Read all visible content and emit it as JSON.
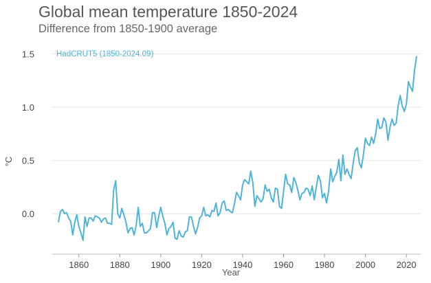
{
  "title": "Global mean temperature 1850-2024",
  "subtitle": "Difference from 1850-1900 average",
  "chart_data": {
    "type": "line",
    "title": "Global mean temperature 1850-2024",
    "subtitle": "Difference from 1850-1900 average",
    "xlabel": "Year",
    "ylabel": "°C",
    "xlim": [
      1847,
      2027
    ],
    "ylim": [
      -0.38,
      1.62
    ],
    "xticks": [
      1860,
      1880,
      1900,
      1920,
      1940,
      1960,
      1980,
      2000,
      2020
    ],
    "yticks": [
      0.0,
      0.5,
      1.0,
      1.5
    ],
    "ytick_labels": [
      "0.0",
      "0.5",
      "1.0",
      "1.5"
    ],
    "grid": "horizontal",
    "legend_position": "top-left",
    "series": [
      {
        "name": "HadCRUT5 (1850-2024.09)",
        "color": "#4fb3d9",
        "x_start": 1850,
        "values": [
          -0.08,
          0.02,
          0.04,
          0.0,
          0.01,
          -0.04,
          -0.07,
          -0.2,
          -0.08,
          -0.01,
          -0.12,
          -0.18,
          -0.25,
          -0.03,
          -0.12,
          -0.04,
          -0.04,
          -0.07,
          -0.02,
          -0.03,
          -0.04,
          -0.08,
          -0.05,
          -0.04,
          -0.09,
          -0.09,
          -0.1,
          0.22,
          0.31,
          0.0,
          -0.04,
          0.05,
          -0.01,
          -0.08,
          -0.18,
          -0.14,
          -0.13,
          -0.2,
          -0.11,
          0.06,
          -0.12,
          -0.09,
          -0.18,
          -0.18,
          -0.16,
          -0.14,
          0.01,
          0.01,
          -0.13,
          -0.03,
          0.06,
          -0.02,
          -0.09,
          -0.2,
          -0.14,
          -0.12,
          -0.08,
          -0.23,
          -0.24,
          -0.16,
          -0.21,
          -0.22,
          -0.17,
          -0.16,
          -0.03,
          -0.03,
          -0.12,
          -0.19,
          -0.13,
          -0.04,
          -0.02,
          0.06,
          -0.02,
          -0.01,
          -0.03,
          0.03,
          0.02,
          0.1,
          -0.02,
          0.01,
          0.1,
          0.12,
          0.03,
          0.04,
          0.02,
          0.01,
          0.09,
          0.2,
          0.17,
          0.13,
          0.27,
          0.32,
          0.3,
          0.28,
          0.4,
          0.29,
          0.07,
          0.17,
          0.14,
          0.11,
          0.14,
          0.27,
          0.21,
          0.23,
          0.15,
          0.11,
          0.24,
          0.23,
          0.07,
          0.05,
          0.21,
          0.37,
          0.28,
          0.27,
          0.2,
          0.34,
          0.29,
          0.22,
          0.13,
          0.19,
          0.2,
          0.24,
          0.23,
          0.17,
          0.26,
          0.13,
          0.25,
          0.36,
          0.31,
          0.15,
          0.19,
          0.1,
          0.21,
          0.42,
          0.3,
          0.35,
          0.39,
          0.51,
          0.31,
          0.55,
          0.37,
          0.42,
          0.37,
          0.33,
          0.47,
          0.59,
          0.62,
          0.48,
          0.43,
          0.55,
          0.71,
          0.66,
          0.64,
          0.72,
          0.66,
          0.75,
          0.89,
          0.8,
          0.81,
          0.9,
          0.86,
          0.69,
          0.81,
          0.89,
          0.83,
          0.85,
          1.01,
          1.11,
          1.01,
          0.96,
          1.03,
          1.24,
          1.19,
          1.15,
          1.35,
          1.48
        ],
        "values_after_1965": true
      }
    ]
  }
}
